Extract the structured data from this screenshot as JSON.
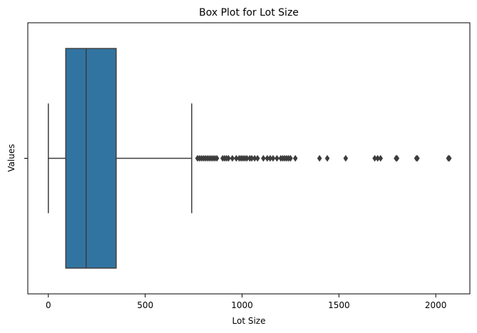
{
  "chart_data": {
    "type": "box",
    "title": "Box Plot for Lot Size",
    "xlabel": "Lot Size",
    "ylabel": "Values",
    "xlim": [
      -106,
      2176
    ],
    "xticks": [
      0,
      500,
      1000,
      1500,
      2000
    ],
    "xtick_labels": [
      "0",
      "500",
      "1000",
      "1500",
      "2000"
    ],
    "ytick_labels": [
      ""
    ],
    "grid": false,
    "box_color": "#3274a1",
    "line_color": "#3d3d3d",
    "box": {
      "whisker_low": 0,
      "q1": 90,
      "median": 195,
      "q3": 350,
      "whisker_high": 740
    },
    "outliers": [
      770,
      780,
      790,
      800,
      810,
      820,
      830,
      840,
      850,
      860,
      870,
      900,
      910,
      920,
      930,
      950,
      970,
      985,
      995,
      1005,
      1015,
      1025,
      1040,
      1050,
      1065,
      1080,
      1110,
      1130,
      1145,
      1160,
      1180,
      1200,
      1210,
      1220,
      1230,
      1240,
      1250,
      1275,
      1400,
      1440,
      1535,
      1685,
      1700,
      1715,
      1795,
      1800,
      1900,
      1905,
      2065,
      2070
    ]
  }
}
